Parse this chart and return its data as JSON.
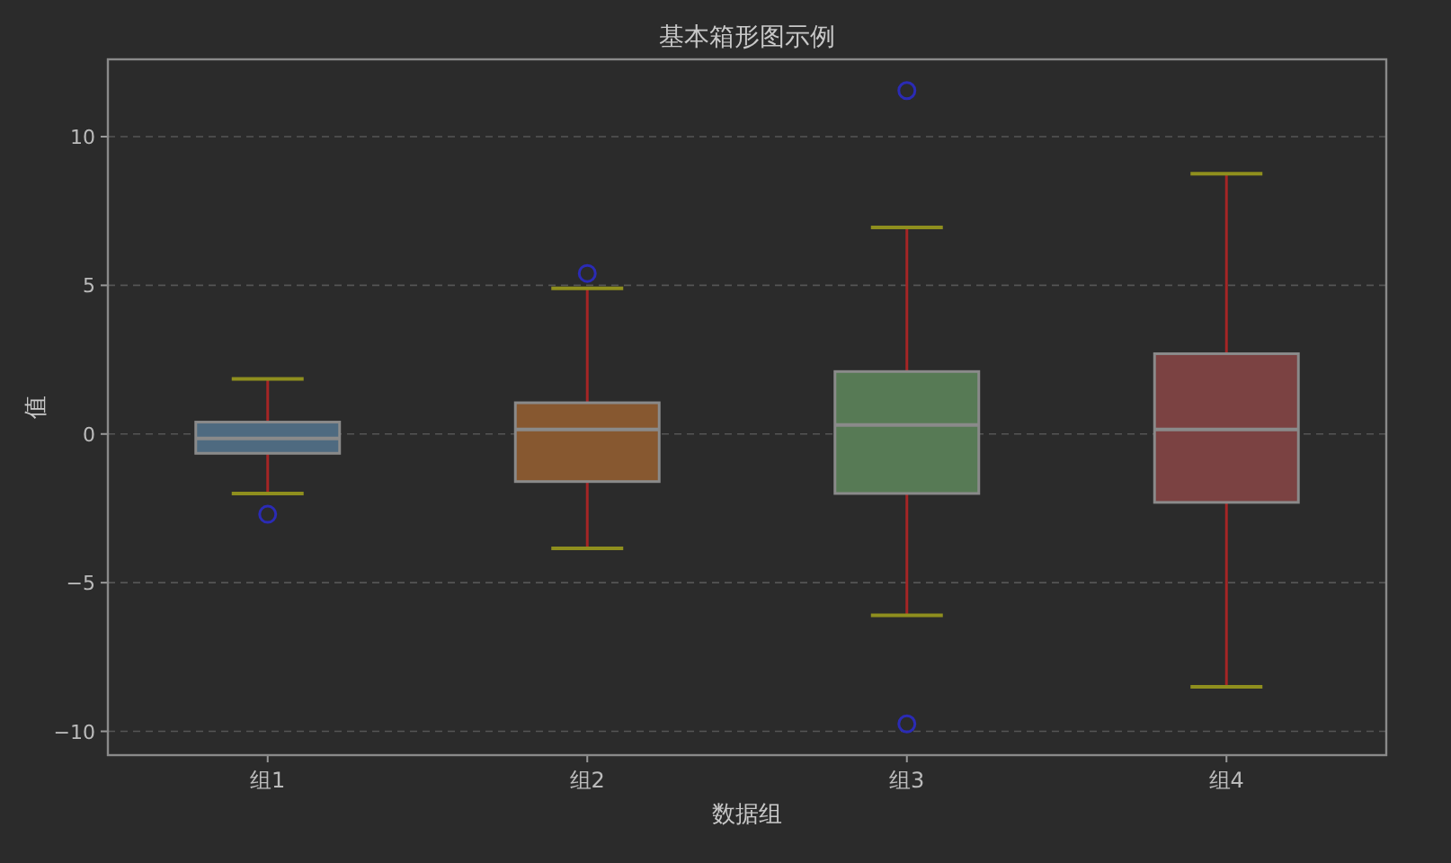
{
  "chart_data": {
    "type": "box",
    "title": "基本箱形图示例",
    "xlabel": "数据组",
    "ylabel": "值",
    "categories": [
      "组1",
      "组2",
      "组3",
      "组4"
    ],
    "colors": [
      "#4e6a80",
      "#875830",
      "#577a55",
      "#7b4242"
    ],
    "boxes": [
      {
        "low": -2.0,
        "q1": -0.65,
        "median": -0.15,
        "q3": 0.4,
        "high": 1.85,
        "outliers": [
          -2.7
        ]
      },
      {
        "low": -3.85,
        "q1": -1.6,
        "median": 0.15,
        "q3": 1.05,
        "high": 4.9,
        "outliers": [
          5.4
        ]
      },
      {
        "low": -6.1,
        "q1": -2.0,
        "median": 0.3,
        "q3": 2.1,
        "high": 6.95,
        "outliers": [
          11.55,
          -9.75
        ]
      },
      {
        "low": -8.5,
        "q1": -2.3,
        "median": 0.15,
        "q3": 2.7,
        "high": 8.75
      }
    ],
    "ylim": [
      -10.8,
      12.6
    ],
    "yticks": [
      {
        "value": -10,
        "label": "−10"
      },
      {
        "value": -5,
        "label": "−5"
      },
      0,
      5,
      10
    ],
    "grid": "y"
  }
}
